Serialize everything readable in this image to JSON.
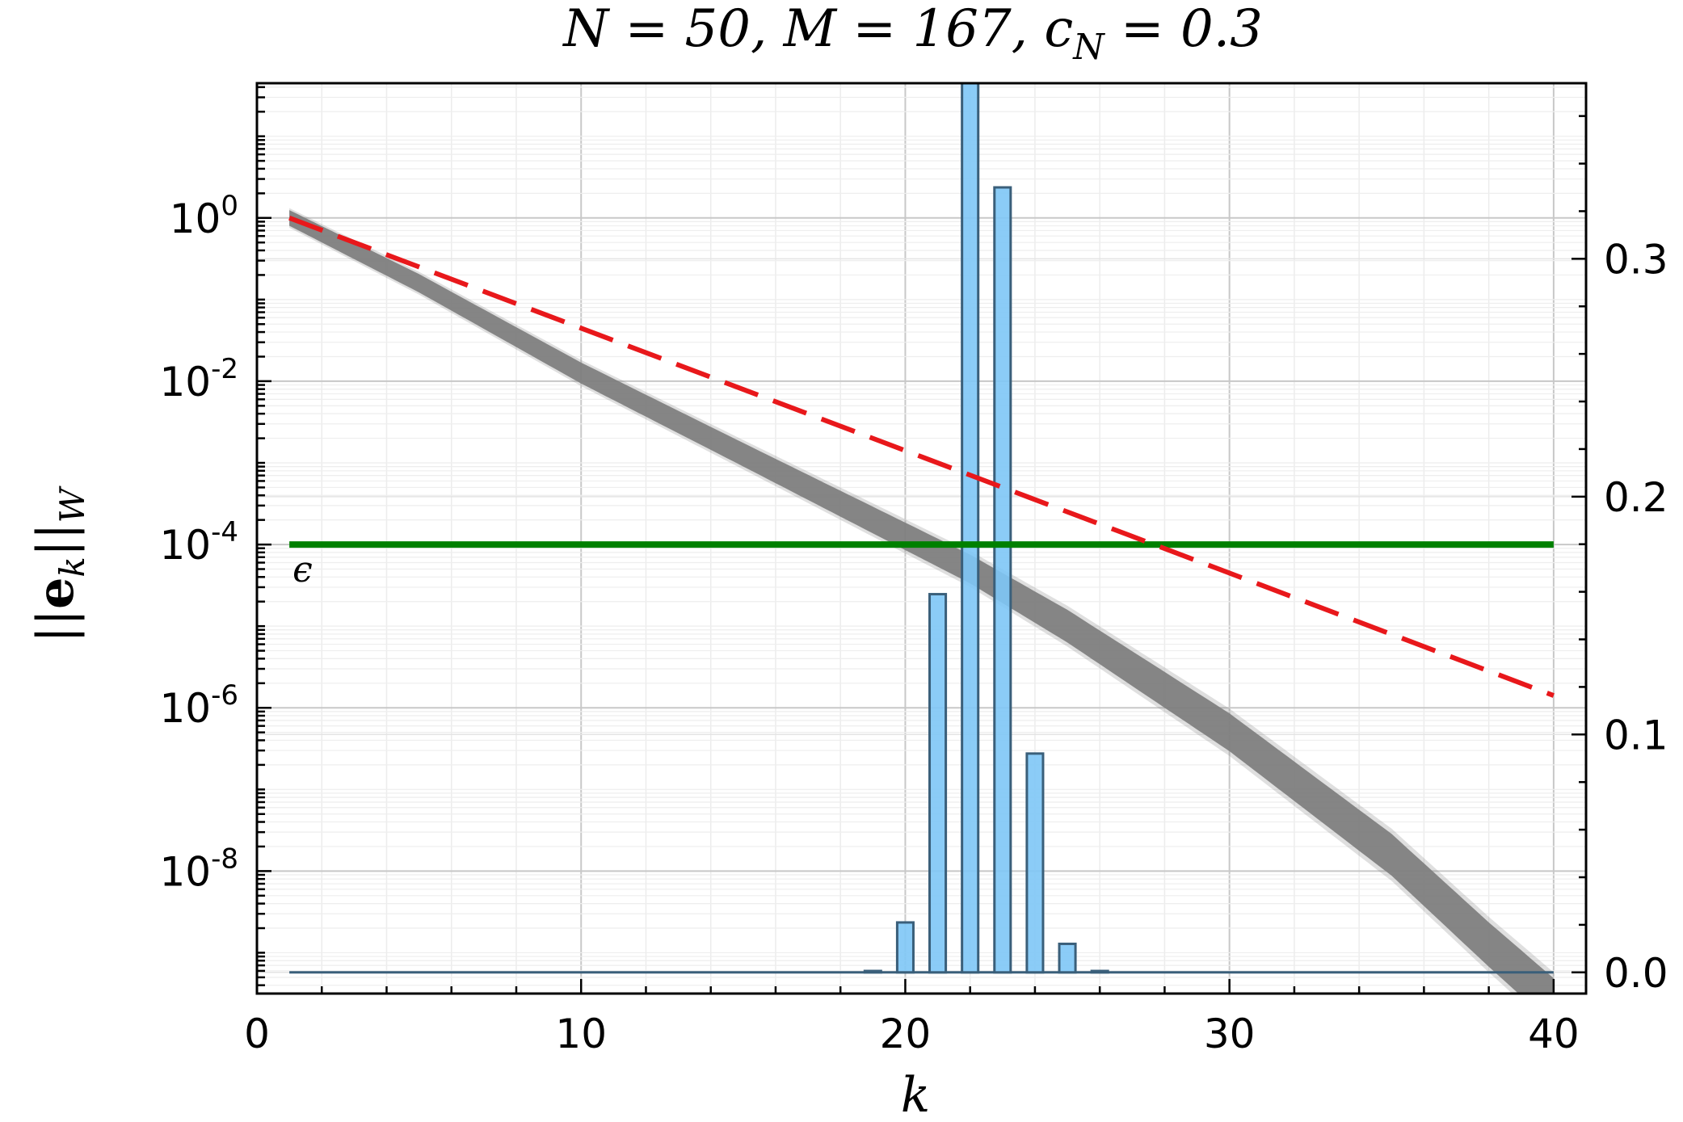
{
  "chart_data": {
    "type": "bar+line",
    "title": "N = 50, M = 167, c_N = 0.3",
    "xlabel": "k",
    "ylabel_left": "||e_k||_W",
    "ylabel_right": "",
    "xlim": [
      0,
      41
    ],
    "ylim_left_log10": [
      -9.5,
      1.65
    ],
    "ylim_right": [
      -0.0089,
      0.3738
    ],
    "x_ticks": [
      0,
      10,
      20,
      30,
      40
    ],
    "y_left_ticks": [
      {
        "exp": 0,
        "base": "10",
        "sup": "0"
      },
      {
        "exp": -2,
        "base": "10",
        "sup": "-2"
      },
      {
        "exp": -4,
        "base": "10",
        "sup": "-4"
      },
      {
        "exp": -6,
        "base": "10",
        "sup": "-6"
      },
      {
        "exp": -8,
        "base": "10",
        "sup": "-8"
      }
    ],
    "y_right_ticks": [
      0.0,
      0.1,
      0.2,
      0.3
    ],
    "y_right_tick_labels": [
      "0.0",
      "0.1",
      "0.2",
      "0.3"
    ],
    "grid": true,
    "threshold": {
      "value": 0.0001,
      "label": "ϵ",
      "color": "#008000"
    },
    "bound_line": {
      "x": [
        1,
        40
      ],
      "log10y": [
        0.0,
        -5.85
      ],
      "color": "#e8181b",
      "style": "dashed"
    },
    "error_band": {
      "color": "#7f7f7f",
      "k": [
        1,
        5,
        10,
        15,
        20,
        22,
        25,
        30,
        35,
        38,
        40
      ],
      "log10_center": [
        0.0,
        -0.8,
        -1.9,
        -2.9,
        -3.9,
        -4.3,
        -5.0,
        -6.3,
        -7.8,
        -8.9,
        -9.6
      ],
      "half_width": [
        0.12,
        0.14,
        0.16,
        0.18,
        0.21,
        0.22,
        0.25,
        0.29,
        0.32,
        0.34,
        0.36
      ]
    },
    "histogram": {
      "color": "#7ec6f6",
      "edge": "#3a5f7a",
      "categories": [
        19,
        20,
        21,
        22,
        23,
        24,
        25,
        26
      ],
      "values": [
        0.0006,
        0.021,
        0.159,
        0.383,
        0.33,
        0.092,
        0.012,
        0.0006
      ]
    }
  }
}
